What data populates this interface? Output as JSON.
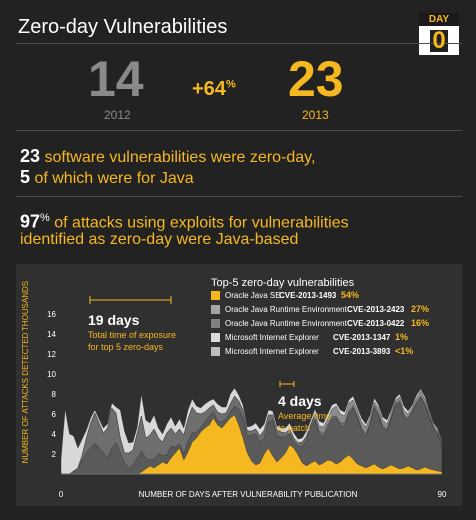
{
  "header": {
    "title": "Zero-day Vulnerabilities",
    "badge_label": "DAY",
    "badge_value": "0"
  },
  "comparison": {
    "value_2012": "14",
    "year_2012": "2012",
    "change": "+64",
    "change_unit": "%",
    "value_2013": "23",
    "year_2013": "2013"
  },
  "stats": {
    "line1_num": "23",
    "line1_text": " software vulnerabilities were zero-day,",
    "line2_num": "5",
    "line2_text": " of which were for Java",
    "line3_num": "97",
    "line3_unit": "%",
    "line3_text": " of attacks using exploits for vulnerabilities",
    "line4_text": "identified as zero-day were Java-based"
  },
  "colors": {
    "accent": "#f5b820",
    "series": [
      "#f5b820",
      "#a5a5a5",
      "#808080",
      "#d9d9d9",
      "#bdbdbd"
    ],
    "fills": [
      "#f5b820",
      "#5a5a5a",
      "#6e6e6e",
      "#8c8c8c",
      "#d8d8d8"
    ]
  },
  "chart_data": {
    "type": "area",
    "title": "Top-5 zero-day vulnerabilities",
    "xlabel": "NUMBER OF DAYS AFTER VULNERABILITY PUBLICATION",
    "ylabel": "NUMBER OF ATTACKS DETECTED",
    "yunit": "THOUSANDS",
    "xlim": [
      0,
      90
    ],
    "ylim": [
      0,
      18
    ],
    "x_ticks": [
      "0",
      "90"
    ],
    "y_ticks": [
      2,
      4,
      6,
      8,
      10,
      12,
      14,
      16
    ],
    "legend_position": "top-right",
    "annotations": [
      {
        "value": "19 days",
        "text1": "Total time of exposure",
        "text2": "for top 5 zero-days"
      },
      {
        "value": "4 days",
        "text1": "Average time",
        "text2": "to patch"
      }
    ],
    "series": [
      {
        "name": "Oracle Java SE",
        "cve": "CVE-2013-1493",
        "share": "54%",
        "values": [
          0,
          0,
          0,
          0,
          0,
          0,
          0,
          0,
          0,
          0,
          0,
          0,
          0,
          0,
          0,
          0,
          0,
          0,
          0,
          0.2,
          0.5,
          0.8,
          0.6,
          0.9,
          1.2,
          1.0,
          1.6,
          2.1,
          2.6,
          1.4,
          2.2,
          3.2,
          3.6,
          4.2,
          4.6,
          4.9,
          5.6,
          4.9,
          4.6,
          5.1,
          5.6,
          5.9,
          4.9,
          3.6,
          2.1,
          1.3,
          0.9,
          1.1,
          2.0,
          2.6,
          1.8,
          1.2,
          1.6,
          2.1,
          2.9,
          2.6,
          1.9,
          1.1,
          0.8,
          1.1,
          1.3,
          0.9,
          1.1,
          1.4,
          1.3,
          1.0,
          1.2,
          1.6,
          1.9,
          1.5,
          1.0,
          0.8,
          0.6,
          0.8,
          1.0,
          0.7,
          0.5,
          0.7,
          0.9,
          0.7,
          0.5,
          0.6,
          0.8,
          0.6,
          0.4,
          0.5,
          0.7,
          0.5,
          0.4,
          0.3,
          0.2
        ]
      },
      {
        "name": "Oracle Java Runtime Environment",
        "cve": "CVE-2013-2423",
        "share": "27%",
        "values": [
          0,
          0,
          0,
          0.3,
          0.6,
          1.4,
          2.1,
          2.6,
          3.1,
          2.6,
          2.1,
          1.6,
          2.6,
          3.1,
          2.1,
          1.1,
          0.6,
          0.9,
          1.6,
          2.1,
          1.1,
          0.6,
          0.9,
          1.1,
          0.6,
          0.9,
          1.2,
          0.6,
          0.4,
          0.6,
          1.1,
          0.9,
          0.6,
          0.4,
          0.6,
          0.9,
          0.6,
          0.4,
          0.6,
          0.4,
          0.6,
          0.9,
          1.6,
          2.1,
          1.6,
          2.6,
          3.1,
          2.1,
          1.6,
          2.6,
          3.6,
          2.6,
          2.1,
          1.6,
          1.1,
          0.6,
          0.9,
          1.6,
          2.6,
          3.6,
          4.1,
          3.1,
          2.6,
          3.1,
          4.1,
          4.6,
          3.6,
          3.1,
          4.1,
          5.1,
          4.6,
          3.6,
          3.1,
          4.1,
          5.6,
          5.1,
          4.1,
          3.6,
          4.6,
          6.1,
          6.6,
          5.1,
          4.6,
          5.6,
          6.6,
          7.1,
          6.1,
          5.1,
          4.1,
          3.6,
          2.6
        ]
      },
      {
        "name": "Oracle Java Runtime Environment",
        "cve": "CVE-2013-0422",
        "share": "16%",
        "values": [
          0,
          0,
          0,
          0,
          0,
          0.5,
          1.5,
          2.5,
          3.0,
          2.5,
          2.0,
          3.0,
          4.0,
          3.0,
          1.5,
          1.0,
          1.5,
          1.5,
          2.5,
          3.5,
          2.0,
          2.5,
          3.0,
          1.6,
          1.4,
          2.2,
          1.8,
          1.3,
          1.5,
          1.9,
          2.2,
          2.6,
          1.9,
          1.4,
          1.0,
          0.8,
          0.7,
          0.9,
          0.8,
          0.6,
          0.8,
          1.0,
          0.8,
          0.7,
          0.6,
          0.4,
          0.5,
          0.6,
          0.8,
          0.7,
          0.5,
          0.6,
          0.5,
          0.4,
          0.5,
          0.4,
          0.3,
          0.5,
          0.4,
          0.3,
          0.4,
          0.3,
          0.3,
          0.4,
          0.3,
          0.2,
          0.3,
          0.4,
          0.3,
          0.2,
          0.3,
          0.2,
          0.3,
          0.2,
          0.2,
          0.3,
          0.2,
          0.2,
          0.2,
          0.3,
          0.2,
          0.2,
          0.2,
          0.2,
          0.2,
          0.2,
          0.2,
          0.2,
          0.2,
          0.2,
          0.2
        ]
      },
      {
        "name": "Microsoft Internet Explorer",
        "cve": "CVE-2013-1347",
        "share": "1%",
        "values": [
          0,
          0,
          0,
          0,
          0,
          0,
          0,
          0,
          0,
          0,
          0,
          0,
          0,
          0,
          0,
          0,
          0,
          0,
          0,
          0,
          0,
          0,
          0,
          0,
          0,
          0,
          0,
          0,
          0,
          0,
          0,
          0,
          0,
          0,
          0,
          0,
          0,
          0,
          0,
          0,
          0,
          0,
          0,
          0,
          0,
          0,
          0,
          0,
          0,
          0,
          0,
          0,
          0,
          0,
          0,
          0,
          0,
          0,
          0,
          0,
          0.3,
          0.5,
          0.7,
          0.6,
          0.8,
          1.0,
          0.9,
          0.7,
          0.8,
          0.6,
          0.5,
          0.6,
          0.7,
          0.5,
          0.4,
          0.5,
          0.6,
          0.5,
          0.4,
          0.3,
          0.4,
          0.5,
          0.4,
          0.3,
          0.4,
          0.5,
          0.4,
          0.3,
          0.2,
          0.2,
          0.1
        ]
      },
      {
        "name": "Microsoft Internet Explorer",
        "cve": "CVE-2013-3893",
        "share": "<1%",
        "values": [
          1.5,
          6.5,
          4.0,
          3.5,
          2.0,
          1.6,
          0.8,
          0.5,
          0.3,
          0.4,
          0.5,
          0.4,
          0.5,
          0.6,
          2.8,
          2.2,
          1.0,
          0.8,
          0.6,
          2.2,
          1.8,
          1.2,
          1.4,
          1.0,
          0.8,
          0.9,
          1.1,
          0.8,
          1.0,
          0.7,
          0.9,
          0.8,
          0.7,
          0.6,
          0.8,
          0.7,
          0.6,
          0.8,
          0.7,
          0.6,
          1.0,
          0.8,
          0.6,
          0.5,
          0.4,
          0.5,
          0.6,
          0.7,
          0.6,
          0.5,
          0.4,
          0.4,
          0.4,
          0.5,
          0.6,
          0.5,
          0.4,
          0.4,
          0.5,
          0.4,
          0.4,
          0.5,
          0.4,
          0.5,
          0.4,
          0.3,
          0.4,
          0.4,
          0.3,
          0.4,
          0.3,
          0.4,
          0.3,
          0.3,
          0.4,
          0.3,
          0.3,
          0.4,
          0.3,
          0.2,
          0.3,
          0.4,
          0.3,
          0.2,
          0.3,
          0.2,
          0.3,
          0.2,
          0.2,
          0.2,
          0.2
        ]
      }
    ]
  }
}
